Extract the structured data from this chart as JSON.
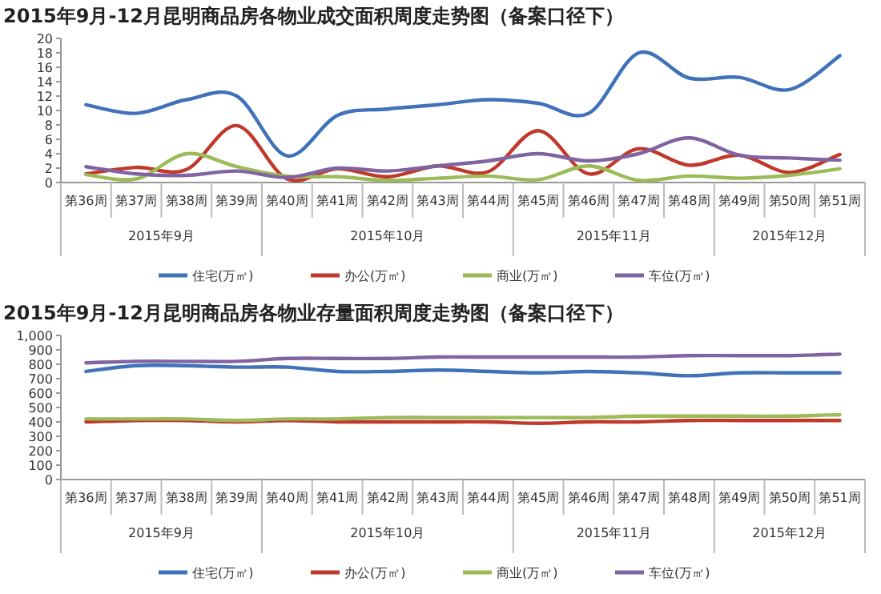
{
  "chart_data": [
    {
      "type": "line",
      "title": "2015年9月-12月昆明商品房各物业成交面积周度走势图（备案口径下）",
      "categories": [
        "第36周",
        "第37周",
        "第38周",
        "第39周",
        "第40周",
        "第41周",
        "第42周",
        "第43周",
        "第44周",
        "第45周",
        "第46周",
        "第47周",
        "第48周",
        "第49周",
        "第50周",
        "第51周"
      ],
      "series": [
        {
          "name": "住宅(万㎡)",
          "color": "#3f72b8",
          "values": [
            10.8,
            9.6,
            11.5,
            12,
            3.7,
            9.3,
            10.2,
            10.8,
            11.5,
            11,
            9.6,
            18,
            14.5,
            14.6,
            12.9,
            17.6
          ]
        },
        {
          "name": "办公(万㎡)",
          "color": "#c0392b",
          "values": [
            1.2,
            2.1,
            1.8,
            7.9,
            0.5,
            1.9,
            0.8,
            2.3,
            1.5,
            7.2,
            1.2,
            4.7,
            2.4,
            3.8,
            1.4,
            3.9
          ]
        },
        {
          "name": "商业(万㎡)",
          "color": "#9bbb59",
          "values": [
            1.1,
            0.5,
            4.0,
            2.2,
            0.9,
            0.8,
            0.3,
            0.6,
            0.9,
            0.4,
            2.3,
            0.3,
            0.9,
            0.6,
            1.0,
            1.9
          ]
        },
        {
          "name": "车位(万㎡)",
          "color": "#8064a2",
          "values": [
            2.2,
            1.2,
            1.0,
            1.6,
            0.7,
            2.0,
            1.6,
            2.3,
            3.0,
            4.0,
            3.0,
            4.0,
            6.2,
            3.8,
            3.4,
            3.1
          ]
        }
      ],
      "ylim": [
        0,
        20
      ],
      "yticks": [
        0,
        2,
        4,
        6,
        8,
        10,
        12,
        14,
        16,
        18,
        20
      ],
      "legend": "bottom",
      "annotations": [
        "2015年9月",
        "2015年10月",
        "2015年11月",
        "2015年12月"
      ]
    },
    {
      "type": "line",
      "title": "2015年9月-12月昆明商品房各物业存量面积周度走势图（备案口径下）",
      "categories": [
        "第36周",
        "第37周",
        "第38周",
        "第39周",
        "第40周",
        "第41周",
        "第42周",
        "第43周",
        "第44周",
        "第45周",
        "第46周",
        "第47周",
        "第48周",
        "第49周",
        "第50周",
        "第51周"
      ],
      "series": [
        {
          "name": "住宅(万㎡)",
          "color": "#3f72b8",
          "values": [
            750,
            790,
            790,
            780,
            780,
            750,
            750,
            760,
            750,
            740,
            750,
            740,
            720,
            740,
            740,
            740
          ]
        },
        {
          "name": "办公(万㎡)",
          "color": "#c0392b",
          "values": [
            400,
            410,
            410,
            400,
            410,
            400,
            400,
            400,
            400,
            390,
            400,
            400,
            410,
            410,
            410,
            410
          ]
        },
        {
          "name": "商业(万㎡)",
          "color": "#9bbb59",
          "values": [
            420,
            420,
            420,
            410,
            420,
            420,
            430,
            430,
            430,
            430,
            430,
            440,
            440,
            440,
            440,
            450
          ]
        },
        {
          "name": "车位(万㎡)",
          "color": "#8064a2",
          "values": [
            810,
            820,
            820,
            820,
            840,
            840,
            840,
            850,
            850,
            850,
            850,
            850,
            860,
            860,
            860,
            870
          ]
        }
      ],
      "ylim": [
        0,
        1000
      ],
      "yticks": [
        0,
        100,
        200,
        300,
        400,
        500,
        600,
        700,
        800,
        900,
        {
          "value": 1000,
          "label": "1,000"
        }
      ],
      "legend": "bottom",
      "annotations": [
        "2015年9月",
        "2015年10月",
        "2015年11月",
        "2015年12月"
      ]
    }
  ]
}
